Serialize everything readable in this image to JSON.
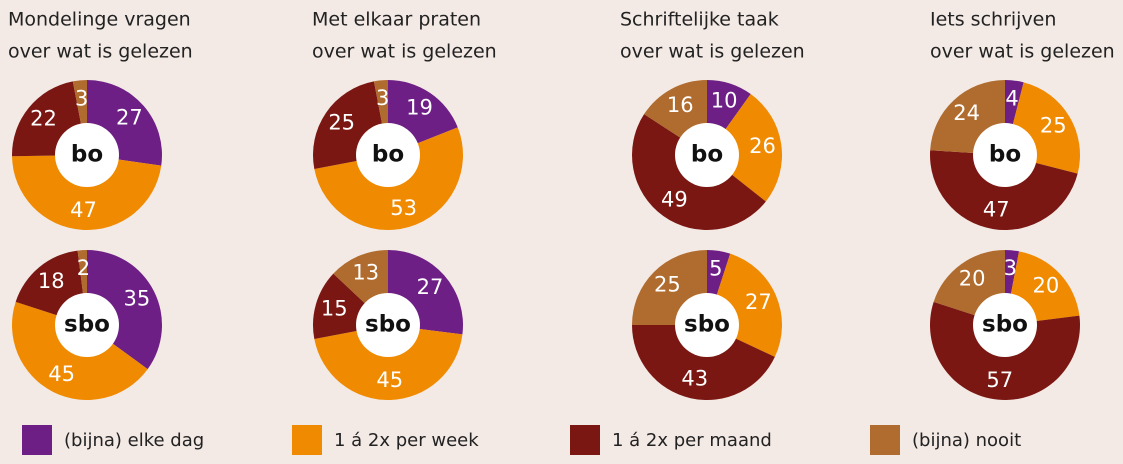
{
  "categories": [
    "(bijna) elke dag",
    "1 á 2x per week",
    "1 á 2x per maand",
    "(bijna) nooit"
  ],
  "colors": [
    "#6e1f86",
    "#f08a00",
    "#7a1712",
    "#b06b2e"
  ],
  "chart_data": [
    {
      "type": "donut",
      "title": [
        "Mondelinge vragen",
        "over wat is gelezen"
      ],
      "series": [
        {
          "name": "bo",
          "values": [
            27,
            47,
            22,
            3
          ]
        },
        {
          "name": "sbo",
          "values": [
            35,
            45,
            18,
            2
          ]
        }
      ]
    },
    {
      "type": "donut",
      "title": [
        "Met elkaar praten",
        "over wat is gelezen"
      ],
      "series": [
        {
          "name": "bo",
          "values": [
            19,
            53,
            25,
            3
          ]
        },
        {
          "name": "sbo",
          "values": [
            27,
            45,
            15,
            13
          ]
        }
      ]
    },
    {
      "type": "donut",
      "title": [
        "Schriftelijke taak",
        "over wat is gelezen"
      ],
      "series": [
        {
          "name": "bo",
          "values": [
            10,
            26,
            49,
            16
          ]
        },
        {
          "name": "sbo",
          "values": [
            5,
            27,
            43,
            25
          ]
        }
      ]
    },
    {
      "type": "donut",
      "title": [
        "Iets schrijven",
        "over wat is gelezen"
      ],
      "series": [
        {
          "name": "bo",
          "values": [
            4,
            25,
            47,
            24
          ]
        },
        {
          "name": "sbo",
          "values": [
            3,
            20,
            57,
            20
          ]
        }
      ]
    }
  ]
}
